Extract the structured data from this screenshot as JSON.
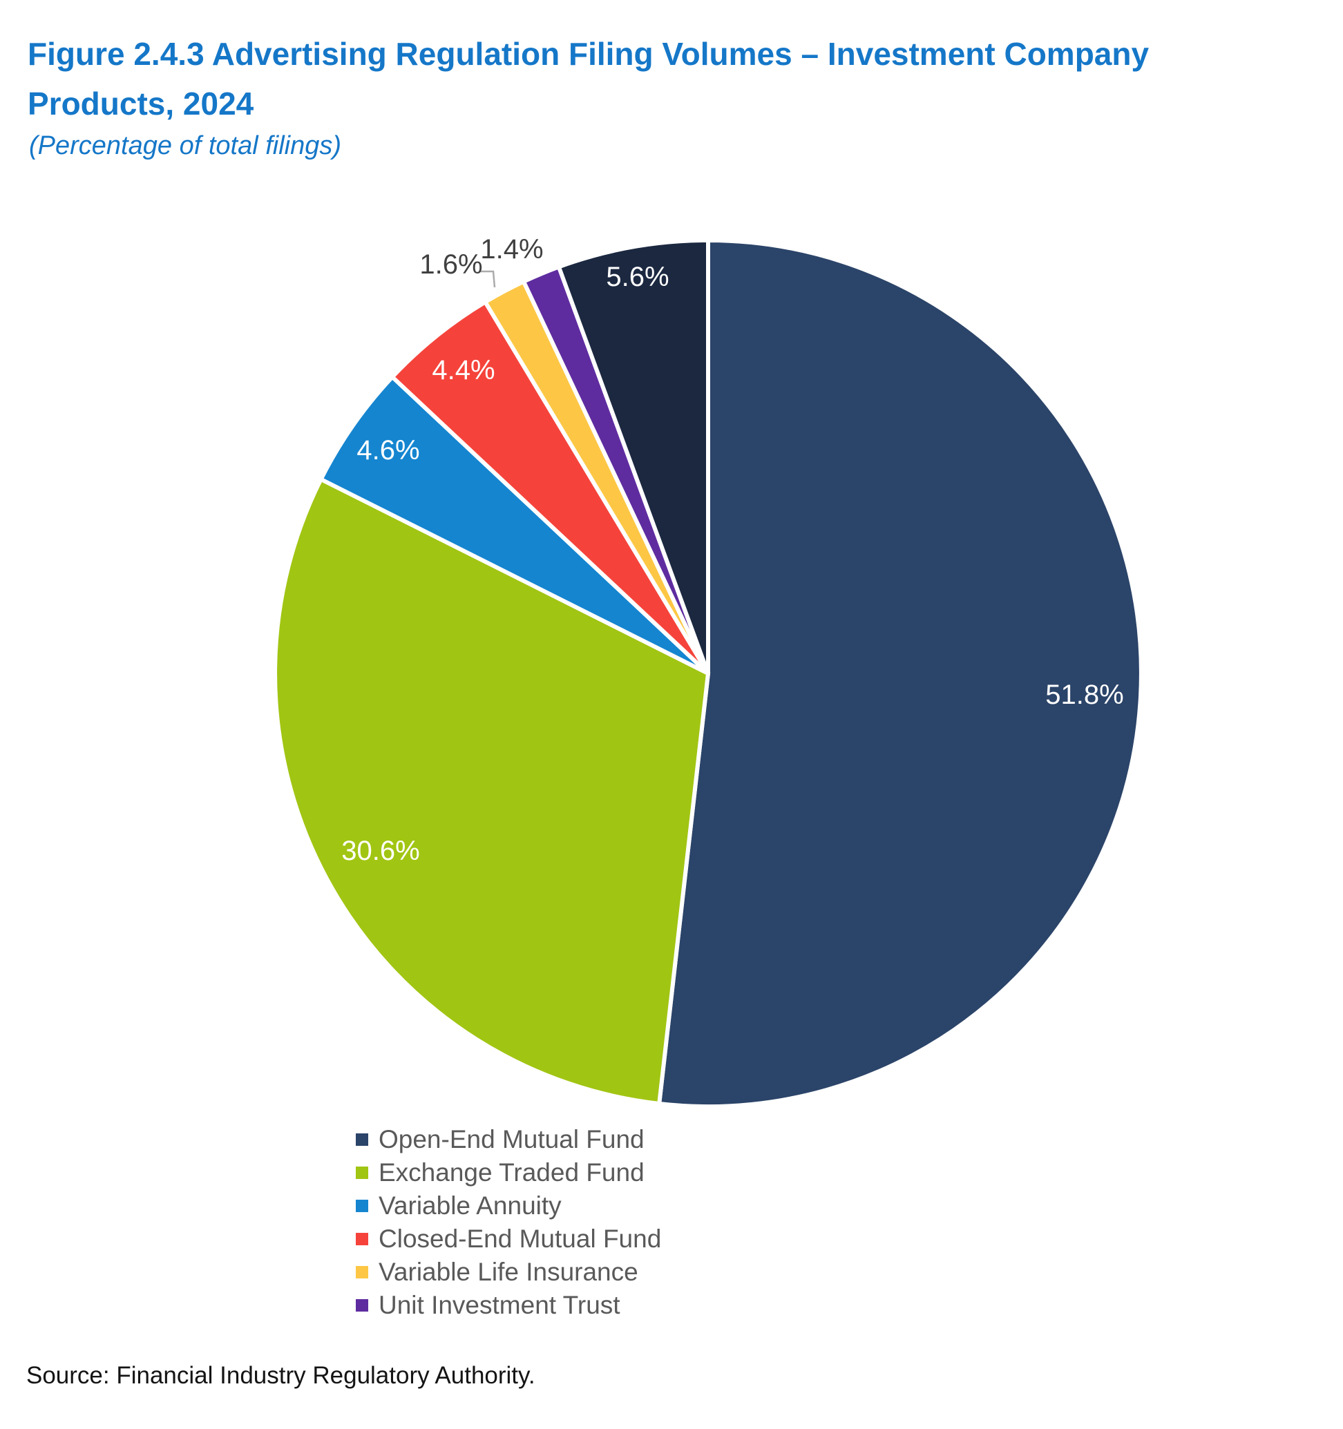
{
  "header": {
    "title_lines": [
      "Figure 2.4.3 Advertising Regulation Filing Volumes – Investment Company",
      "Products, 2024"
    ],
    "subtitle": "(Percentage of total filings)",
    "title_color": "#1577C8"
  },
  "chart_data": {
    "type": "pie",
    "title": "Figure 2.4.3 Advertising Regulation Filing Volumes – Investment Company Products, 2024",
    "subtitle": "(Percentage of total filings)",
    "start_angle_deg": 0,
    "direction": "clockwise",
    "legend_position": "bottom",
    "gap_color": "#FFFFFF",
    "inside_label_color": "#FFFFFF",
    "outside_label_color": "#404040",
    "leader_color": "#ABABAB",
    "slices": [
      {
        "label": "Open-End Mutual Fund",
        "value": 51.8,
        "data_label": "51.8%",
        "color": "#2B4469",
        "in_legend": true
      },
      {
        "label": "Exchange Traded Fund",
        "value": 30.6,
        "data_label": "30.6%",
        "color": "#A1C513",
        "in_legend": true
      },
      {
        "label": "Variable Annuity",
        "value": 4.6,
        "data_label": "4.6%",
        "color": "#1585D0",
        "in_legend": true
      },
      {
        "label": "Closed-End Mutual Fund",
        "value": 4.4,
        "data_label": "4.4%",
        "color": "#F5433B",
        "in_legend": true
      },
      {
        "label": "Variable Life Insurance",
        "value": 1.6,
        "data_label": "1.6%",
        "color": "#FDC745",
        "in_legend": true
      },
      {
        "label": "Unit Investment Trust",
        "value": 1.4,
        "data_label": "1.4%",
        "color": "#5F2CA0",
        "in_legend": true
      },
      {
        "label": "",
        "value": 5.6,
        "data_label": "5.6%",
        "color": "#1B2840",
        "in_legend": false
      }
    ]
  },
  "footer": {
    "source": "Source: Financial Industry Regulatory Authority."
  }
}
